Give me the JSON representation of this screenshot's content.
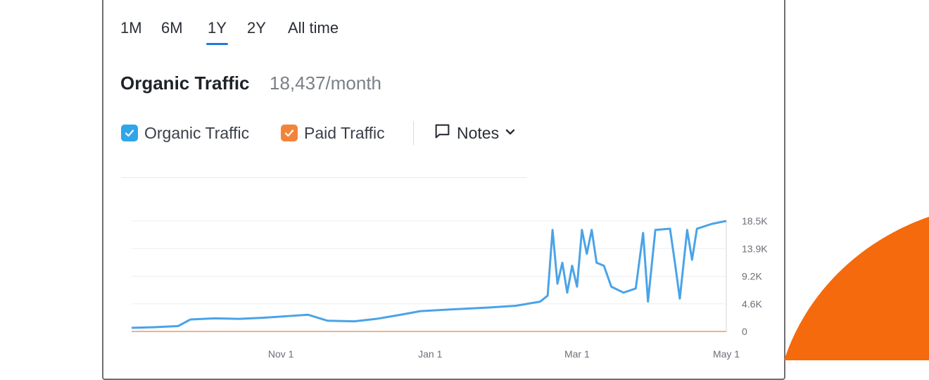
{
  "tabs": [
    {
      "label": "1M",
      "active": false
    },
    {
      "label": "6M",
      "active": false
    },
    {
      "label": "1Y",
      "active": true
    },
    {
      "label": "2Y",
      "active": false
    },
    {
      "label": "All time",
      "active": false
    }
  ],
  "header": {
    "title": "Organic Traffic",
    "value": "18,437/month"
  },
  "legend": {
    "organic": {
      "label": "Organic Traffic",
      "checked": true,
      "color": "#2fa5ea",
      "icon": "check-icon"
    },
    "paid": {
      "label": "Paid Traffic",
      "checked": true,
      "color": "#f2843a",
      "icon": "check-icon"
    },
    "notes": {
      "label": "Notes",
      "icon": "comment-icon",
      "caret": "chevron-down-icon"
    }
  },
  "colors": {
    "accent": "#1f7bd6",
    "organic": "#4aa3e8",
    "paid": "#f4b08a",
    "blob": "#f56a0c"
  },
  "chart_data": {
    "type": "line",
    "x_ticks": [
      "Nov 1",
      "Jan 1",
      "Mar 1",
      "May 1"
    ],
    "y_ticks": [
      "0",
      "4.6K",
      "9.2K",
      "13.9K",
      "18.5K"
    ],
    "ylim": [
      0,
      18500
    ],
    "series": [
      {
        "name": "Organic Traffic",
        "points": [
          [
            "Sep 1",
            600
          ],
          [
            "Sep 10",
            700
          ],
          [
            "Sep 20",
            900
          ],
          [
            "Sep 25",
            2000
          ],
          [
            "Oct 5",
            2200
          ],
          [
            "Oct 15",
            2100
          ],
          [
            "Oct 25",
            2300
          ],
          [
            "Nov 5",
            2600
          ],
          [
            "Nov 12",
            2800
          ],
          [
            "Nov 20",
            1800
          ],
          [
            "Dec 1",
            1700
          ],
          [
            "Dec 10",
            2100
          ],
          [
            "Dec 20",
            2800
          ],
          [
            "Dec 28",
            3400
          ],
          [
            "Jan 10",
            3700
          ],
          [
            "Jan 25",
            4000
          ],
          [
            "Feb 5",
            4300
          ],
          [
            "Feb 15",
            5000
          ],
          [
            "Feb 18",
            6000
          ],
          [
            "Feb 20",
            17000
          ],
          [
            "Feb 22",
            8000
          ],
          [
            "Feb 24",
            11500
          ],
          [
            "Feb 26",
            6500
          ],
          [
            "Feb 28",
            11000
          ],
          [
            "Mar 1",
            7500
          ],
          [
            "Mar 3",
            17000
          ],
          [
            "Mar 5",
            13000
          ],
          [
            "Mar 7",
            17000
          ],
          [
            "Mar 9",
            11500
          ],
          [
            "Mar 12",
            11000
          ],
          [
            "Mar 15",
            7500
          ],
          [
            "Mar 20",
            6500
          ],
          [
            "Mar 25",
            7200
          ],
          [
            "Mar 28",
            16500
          ],
          [
            "Mar 30",
            5000
          ],
          [
            "Apr 2",
            17000
          ],
          [
            "Apr 8",
            17200
          ],
          [
            "Apr 10",
            11500
          ],
          [
            "Apr 12",
            5500
          ],
          [
            "Apr 15",
            17000
          ],
          [
            "Apr 17",
            12000
          ],
          [
            "Apr 19",
            17200
          ],
          [
            "Apr 25",
            18000
          ],
          [
            "May 1",
            18500
          ]
        ]
      },
      {
        "name": "Paid Traffic",
        "points": [
          [
            "Sep 1",
            0
          ],
          [
            "May 1",
            0
          ]
        ]
      }
    ]
  }
}
